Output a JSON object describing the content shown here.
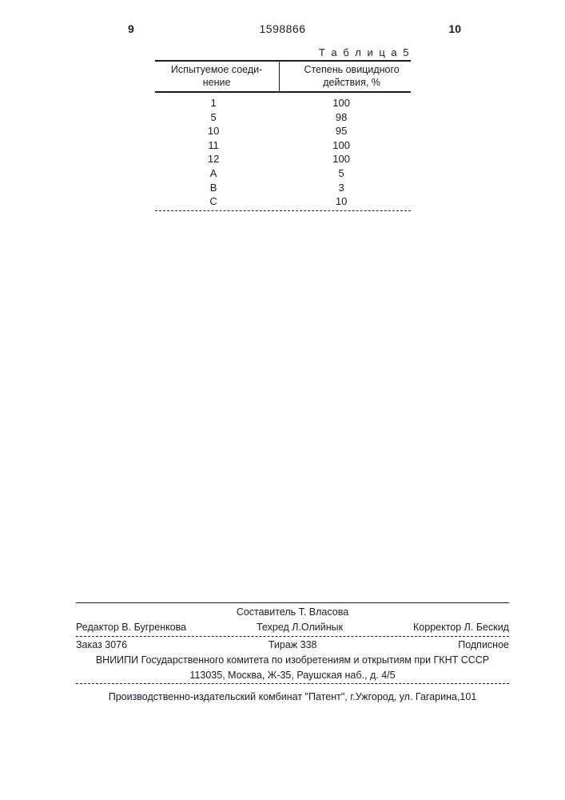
{
  "page_left": "9",
  "doc_number": "1598866",
  "page_right": "10",
  "table": {
    "caption": "Т а б л и ц а  5",
    "columns": [
      "Испытуемое соеди-\nнение",
      "Степень овицидного\nдействия, %"
    ],
    "rows": [
      [
        "1",
        "100"
      ],
      [
        "5",
        "98"
      ],
      [
        "10",
        "95"
      ],
      [
        "11",
        "100"
      ],
      [
        "12",
        "100"
      ],
      [
        "A",
        "5"
      ],
      [
        "B",
        "3"
      ],
      [
        "C",
        "10"
      ]
    ]
  },
  "colophon": {
    "compiler": "Составитель Т. Власова",
    "editor": "Редактор В. Бугренкова",
    "techred": "Техред Л.Олийнык",
    "corrector": "Корректор Л. Бескид",
    "order": "Заказ 3076",
    "tirazh": "Тираж 338",
    "subscribe": "Подписное",
    "org": "ВНИИПИ Государственного комитета по изобретениям и открытиям при ГКНТ СССР",
    "addr1": "113035, Москва, Ж-35, Раушская наб., д. 4/5",
    "publisher": "Производственно-издательский комбинат \"Патент\", г.Ужгород, ул. Гагарина,101"
  }
}
